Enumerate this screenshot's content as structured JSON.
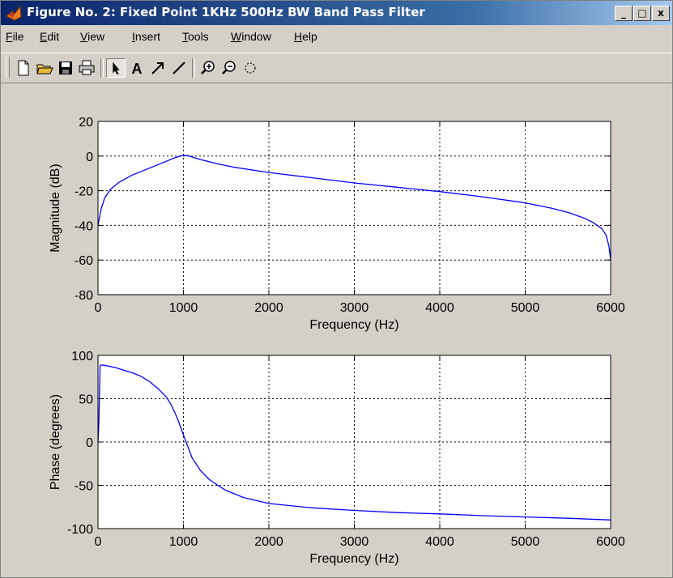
{
  "window": {
    "title": "Figure No. 2: Fixed Point 1KHz 500Hz BW Band Pass Filter",
    "controls": {
      "minimize": "_",
      "maximize": "□",
      "close": "x"
    }
  },
  "menu": [
    {
      "id": "file",
      "label": "File",
      "underline": "F",
      "rest": "ile"
    },
    {
      "id": "edit",
      "label": "Edit",
      "underline": "E",
      "rest": "dit"
    },
    {
      "id": "view",
      "label": "View",
      "underline": "V",
      "rest": "iew"
    },
    {
      "id": "insert",
      "label": "Insert",
      "underline": "I",
      "rest": "nsert"
    },
    {
      "id": "tools",
      "label": "Tools",
      "underline": "T",
      "rest": "ools"
    },
    {
      "id": "window",
      "label": "Window",
      "underline": "W",
      "rest": "indow"
    },
    {
      "id": "help",
      "label": "Help",
      "underline": "H",
      "rest": "elp"
    }
  ],
  "toolbar": {
    "items": [
      "new-file-icon",
      "open-folder-icon",
      "save-icon",
      "print-icon",
      "select-arrow-icon",
      "insert-text-icon",
      "insert-arrow-icon",
      "insert-line-icon",
      "zoom-in-icon",
      "zoom-out-icon",
      "rotate-3d-icon"
    ],
    "text_tool_label": "A"
  },
  "colors": {
    "line": "#0000ff",
    "plot_bg": "#ffffff",
    "figure_bg": "#d4d0c8"
  },
  "chart_data": [
    {
      "type": "line",
      "xlabel": "Frequency (Hz)",
      "ylabel": "Magnitude (dB)",
      "xlim": [
        0,
        6000
      ],
      "ylim": [
        -80,
        20
      ],
      "xticks": [
        0,
        1000,
        2000,
        3000,
        4000,
        5000,
        6000
      ],
      "yticks": [
        -80,
        -60,
        -40,
        -20,
        0,
        20
      ],
      "grid": true,
      "series": [
        {
          "x": [
            0,
            15,
            40,
            80,
            150,
            250,
            400,
            600,
            800,
            900,
            1000,
            1050,
            1100,
            1200,
            1400,
            1600,
            2000,
            2500,
            3000,
            3500,
            4000,
            4500,
            5000,
            5300,
            5500,
            5700,
            5800,
            5900,
            5950,
            5980,
            6000
          ],
          "y": [
            -40,
            -36,
            -30,
            -24,
            -19,
            -15,
            -11,
            -7,
            -3,
            -1,
            0.5,
            0.3,
            -0.5,
            -2,
            -4.5,
            -6.5,
            -9.5,
            -12.5,
            -15.5,
            -18,
            -20.5,
            -23.5,
            -27,
            -30,
            -32.5,
            -36,
            -38.5,
            -42,
            -46,
            -52,
            -60
          ]
        }
      ]
    },
    {
      "type": "line",
      "xlabel": "Frequency (Hz)",
      "ylabel": "Phase (degrees)",
      "xlim": [
        0,
        6000
      ],
      "ylim": [
        -100,
        100
      ],
      "xticks": [
        0,
        1000,
        2000,
        3000,
        4000,
        5000,
        6000
      ],
      "yticks": [
        -100,
        -50,
        0,
        50,
        100
      ],
      "grid": true,
      "series": [
        {
          "x": [
            0,
            8,
            15,
            25,
            40,
            100,
            200,
            300,
            400,
            500,
            600,
            700,
            800,
            850,
            900,
            950,
            1000,
            1050,
            1100,
            1200,
            1300,
            1400,
            1500,
            1700,
            2000,
            2500,
            3000,
            3500,
            4000,
            4500,
            5000,
            5500,
            6000
          ],
          "y": [
            0,
            15,
            45,
            88,
            89,
            88,
            86,
            83,
            80,
            76,
            70,
            62,
            52,
            44,
            34,
            22,
            8,
            -5,
            -18,
            -33,
            -43,
            -50,
            -56,
            -64,
            -71,
            -76,
            -79,
            -81.5,
            -83,
            -85,
            -86.5,
            -88,
            -90
          ]
        }
      ]
    }
  ]
}
